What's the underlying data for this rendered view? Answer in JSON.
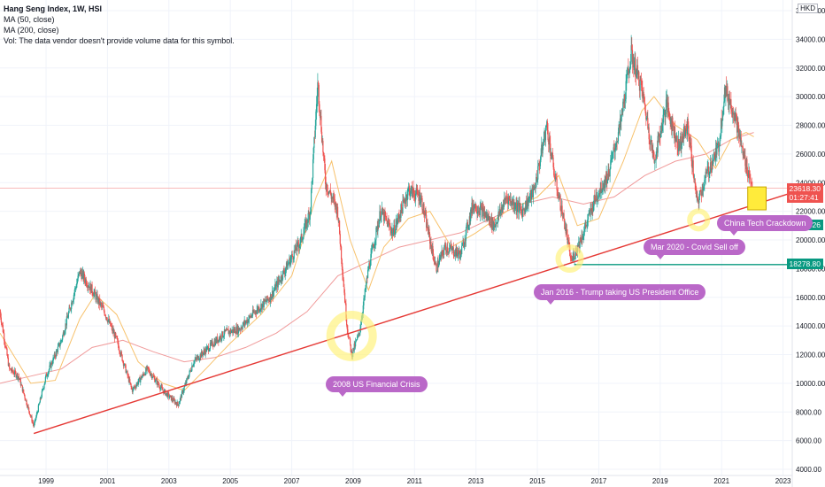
{
  "legend": {
    "title": "Hang Seng Index, 1W, HSI",
    "ma50": "MA (50, close)",
    "ma200": "MA (200, close)",
    "vol": "Vol: The data vendor doesn't provide volume data for this symbol."
  },
  "currency": "HKD",
  "tags": {
    "last_price": "23618.30",
    "countdown": "01:27:41",
    "level_1": "21139.26",
    "level_2": "18278.80"
  },
  "notes": {
    "crisis_2008": "2008 US Financial Crisis",
    "trump_2016": "Jan 2016 - Trump taking US President Office",
    "covid_2020": "Mar 2020 - Covid Sell off",
    "china_tech": "China Tech Crackdown"
  },
  "colors": {
    "up": "#26a69a",
    "down": "#ef5350",
    "ma50": "#f7c16b",
    "ma200": "#f09a9a",
    "trendline": "#e53935",
    "support": "#089981",
    "highlight": "#fff176",
    "note": "#ba68c8"
  },
  "chart_data": {
    "type": "candlestick",
    "title": "Hang Seng Index, 1W, HSI",
    "x_ticks": [
      "1999",
      "2001",
      "2003",
      "2005",
      "2007",
      "2009",
      "2011",
      "2013",
      "2015",
      "2017",
      "2019",
      "2021",
      "2023"
    ],
    "x_range": [
      1997.5,
      2023.3
    ],
    "y_ticks": [
      "4000.00",
      "6000.00",
      "8000.00",
      "10000.00",
      "12000.00",
      "14000.00",
      "16000.00",
      "18000.00",
      "20000.00",
      "22000.00",
      "24000.00",
      "26000.00",
      "28000.00",
      "30000.00",
      "32000.00",
      "34000.00",
      "36000.00"
    ],
    "y_range": [
      4000,
      36000
    ],
    "price_path": [
      [
        1997.5,
        15000
      ],
      [
        1997.8,
        11000
      ],
      [
        1998.1,
        10500
      ],
      [
        1998.6,
        7000
      ],
      [
        1999.0,
        10500
      ],
      [
        1999.5,
        13000
      ],
      [
        2000.1,
        17800
      ],
      [
        2000.5,
        16500
      ],
      [
        2000.9,
        15000
      ],
      [
        2001.3,
        13000
      ],
      [
        2001.8,
        9500
      ],
      [
        2002.3,
        11000
      ],
      [
        2002.8,
        9500
      ],
      [
        2003.3,
        8500
      ],
      [
        2003.8,
        11500
      ],
      [
        2004.3,
        12500
      ],
      [
        2004.8,
        13500
      ],
      [
        2005.3,
        13800
      ],
      [
        2005.8,
        15000
      ],
      [
        2006.3,
        16000
      ],
      [
        2006.8,
        18000
      ],
      [
        2007.3,
        20000
      ],
      [
        2007.6,
        22000
      ],
      [
        2007.85,
        31000
      ],
      [
        2008.1,
        24000
      ],
      [
        2008.5,
        22000
      ],
      [
        2008.8,
        14000
      ],
      [
        2008.95,
        12000
      ],
      [
        2009.2,
        13500
      ],
      [
        2009.5,
        18000
      ],
      [
        2009.9,
        22000
      ],
      [
        2010.3,
        20500
      ],
      [
        2010.8,
        23500
      ],
      [
        2011.2,
        23000
      ],
      [
        2011.7,
        18000
      ],
      [
        2012.0,
        19500
      ],
      [
        2012.5,
        19000
      ],
      [
        2012.9,
        22500
      ],
      [
        2013.2,
        22000
      ],
      [
        2013.6,
        21000
      ],
      [
        2014.0,
        23000
      ],
      [
        2014.5,
        22000
      ],
      [
        2014.9,
        23500
      ],
      [
        2015.3,
        28000
      ],
      [
        2015.6,
        24000
      ],
      [
        2015.9,
        21000
      ],
      [
        2016.1,
        18500
      ],
      [
        2016.5,
        20500
      ],
      [
        2016.9,
        23000
      ],
      [
        2017.3,
        24500
      ],
      [
        2017.7,
        28000
      ],
      [
        2018.05,
        33000
      ],
      [
        2018.4,
        30500
      ],
      [
        2018.8,
        25500
      ],
      [
        2019.2,
        29500
      ],
      [
        2019.6,
        26500
      ],
      [
        2019.9,
        28000
      ],
      [
        2020.2,
        22500
      ],
      [
        2020.5,
        24500
      ],
      [
        2020.9,
        26500
      ],
      [
        2021.1,
        30500
      ],
      [
        2021.4,
        29000
      ],
      [
        2021.7,
        26000
      ],
      [
        2021.9,
        24500
      ],
      [
        2022.0,
        23618
      ]
    ],
    "ma50_path": [
      [
        1997.5,
        13500
      ],
      [
        1998.5,
        10000
      ],
      [
        1999.3,
        10200
      ],
      [
        2000.1,
        14500
      ],
      [
        2000.6,
        16200
      ],
      [
        2001.3,
        14800
      ],
      [
        2002.0,
        11500
      ],
      [
        2002.8,
        10000
      ],
      [
        2003.5,
        9500
      ],
      [
        2004.2,
        11000
      ],
      [
        2005.0,
        12800
      ],
      [
        2006.0,
        14800
      ],
      [
        2007.0,
        17500
      ],
      [
        2007.8,
        23000
      ],
      [
        2008.3,
        25500
      ],
      [
        2008.9,
        20000
      ],
      [
        2009.5,
        16500
      ],
      [
        2010.0,
        19500
      ],
      [
        2010.8,
        21500
      ],
      [
        2011.5,
        22000
      ],
      [
        2012.2,
        19500
      ],
      [
        2013.0,
        20500
      ],
      [
        2014.0,
        22000
      ],
      [
        2015.0,
        23000
      ],
      [
        2015.7,
        24500
      ],
      [
        2016.3,
        21000
      ],
      [
        2017.0,
        21500
      ],
      [
        2017.8,
        25500
      ],
      [
        2018.4,
        29000
      ],
      [
        2018.8,
        30000
      ],
      [
        2019.5,
        28000
      ],
      [
        2020.2,
        27000
      ],
      [
        2020.8,
        25000
      ],
      [
        2021.3,
        27000
      ],
      [
        2021.8,
        27500
      ],
      [
        2022.05,
        27200
      ]
    ],
    "ma200_path": [
      [
        1997.5,
        10000
      ],
      [
        1998.5,
        10500
      ],
      [
        1999.5,
        11000
      ],
      [
        2000.5,
        12500
      ],
      [
        2001.5,
        13000
      ],
      [
        2002.5,
        12200
      ],
      [
        2003.5,
        11500
      ],
      [
        2004.5,
        11800
      ],
      [
        2005.5,
        12500
      ],
      [
        2006.5,
        13500
      ],
      [
        2007.5,
        15000
      ],
      [
        2008.5,
        17500
      ],
      [
        2009.5,
        18500
      ],
      [
        2010.5,
        19500
      ],
      [
        2011.5,
        20000
      ],
      [
        2012.5,
        20500
      ],
      [
        2013.5,
        21500
      ],
      [
        2014.5,
        22500
      ],
      [
        2015.5,
        23000
      ],
      [
        2016.5,
        22500
      ],
      [
        2017.5,
        23000
      ],
      [
        2018.5,
        24500
      ],
      [
        2019.5,
        25500
      ],
      [
        2020.5,
        26000
      ],
      [
        2021.3,
        27000
      ],
      [
        2022.05,
        27500
      ]
    ],
    "trendline": [
      [
        1998.6,
        6500
      ],
      [
        2023.3,
        23300
      ]
    ],
    "support_level": 18278.8,
    "last_price": 23618.3
  }
}
